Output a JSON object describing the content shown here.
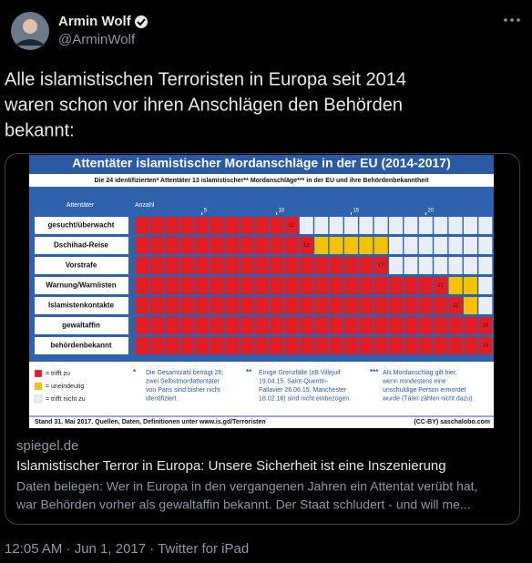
{
  "tweet": {
    "name": "Armin Wolf",
    "handle": "@ArminWolf",
    "text_lines": [
      "Alle islamistischen Terroristen in Europa seit 2014",
      "waren schon vor ihren Anschlägen den Behörden",
      "bekannt:"
    ],
    "meta": "12:05 AM · Jun 1, 2017 · Twitter for iPad"
  },
  "infographic": {
    "title": "Attentäter islamistischer Mordanschläge in der EU (2014-2017)",
    "subtitle": "Die 24 identifizierten* Attentäter 13 islamistischer** Mordanschläge*** in der EU und ihre Behördenbekanntheit",
    "row_header": "Attentäter",
    "count_header": "Anzahl",
    "ticks": [
      5,
      10,
      15,
      20
    ],
    "colors": {
      "yes": "#e31b23",
      "unclear": "#f4c300",
      "no": "#e9eef6"
    },
    "rows": [
      {
        "label": "gesucht/überwacht",
        "yes": 11,
        "unclear": 0,
        "no": 13
      },
      {
        "label": "Dschihad-Reise",
        "yes": 12,
        "unclear": 5,
        "no": 7
      },
      {
        "label": "Vorstrafe",
        "yes": 17,
        "unclear": 0,
        "no": 7
      },
      {
        "label": "Warnung/Warnlisten",
        "yes": 21,
        "unclear": 2,
        "no": 1
      },
      {
        "label": "Islamistenkontakte",
        "yes": 22,
        "unclear": 1,
        "no": 1
      },
      {
        "label": "gewaltaffin",
        "yes": 24,
        "unclear": 0,
        "no": 0
      },
      {
        "label": "behördenbekannt",
        "yes": 24,
        "unclear": 0,
        "no": 0
      }
    ],
    "legend": {
      "yes": "= trifft zu",
      "unclear": "= uneindeutig",
      "no": "= trifft nicht zu"
    },
    "notes": [
      {
        "marker": "*",
        "lines": [
          "Die Gesamtzahl beträgt 26;",
          "zwei Selbstmordattentäter",
          "von Paris sind bisher nicht",
          "identifiziert."
        ]
      },
      {
        "marker": "**",
        "lines": [
          "Einige Grenzfälle (zB Villejuif",
          "19.04.15, Saint-Quentin-",
          "Fallavier 26.06.15, Manchester",
          "18.02.16) sind nicht einbezogen."
        ]
      },
      {
        "marker": "***",
        "lines": [
          "Als Mordanschlag gilt hier,",
          "wenn mindestens eine",
          "unschuldige Person ermordet",
          "wurde (Täter zählen nicht dazu)."
        ]
      }
    ],
    "footer_left": "Stand 31. Mai 2017. Quellen, Daten, Definitionen unter www.is.gd/Terroristen",
    "footer_right": "(CC-BY) saschalobo.com"
  },
  "card": {
    "domain": "spiegel.de",
    "title": "Islamistischer Terror in Europa: Unsere Sicherheit ist eine Inszenierung",
    "description_lines": [
      "Daten belegen: Wer in Europa in den vergangenen Jahren ein Attentat verübt hat,",
      "war Behörden vorher als gewaltaffin bekannt. Der Staat schludert - und will me..."
    ]
  }
}
